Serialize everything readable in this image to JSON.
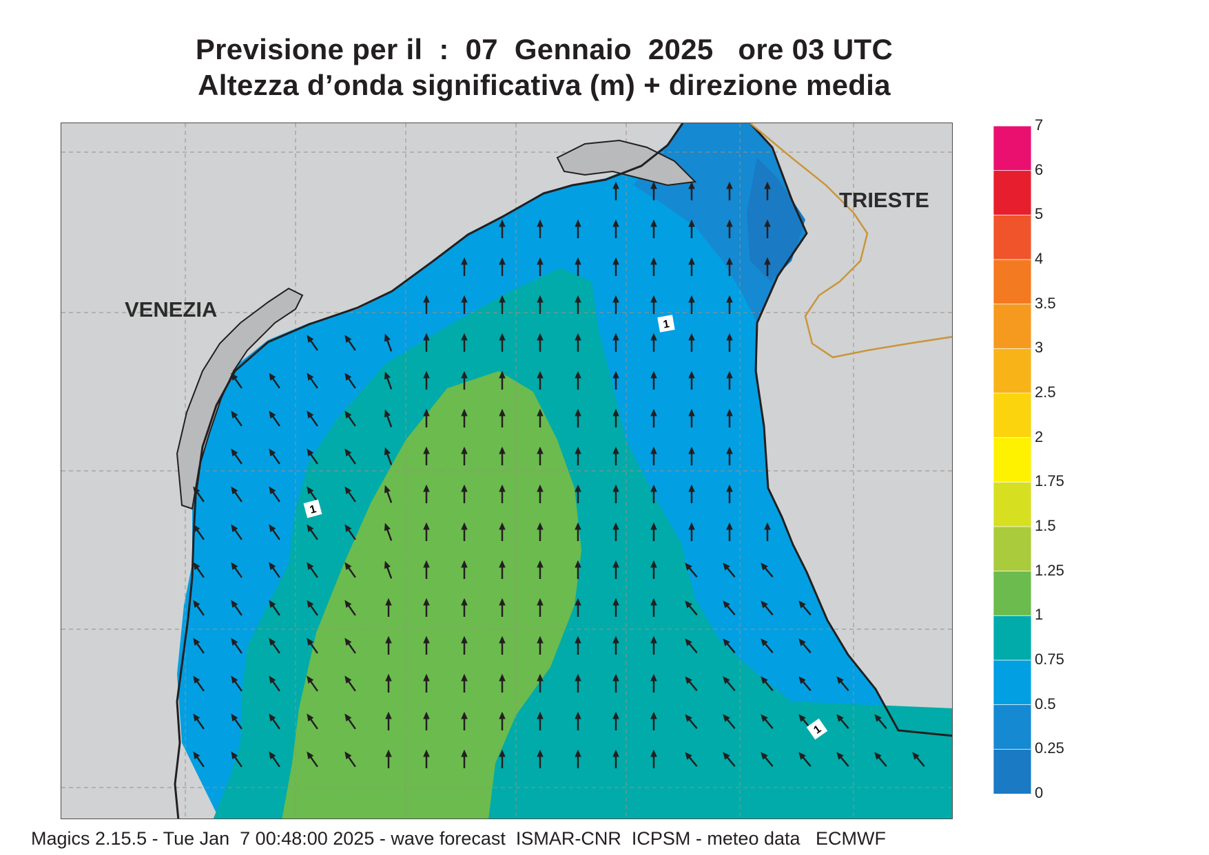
{
  "title": {
    "line1": "Previsione per il  :  07  Gennaio  2025   ore 03 UTC",
    "line2": "Altezza d’onda significativa (m) + direzione media"
  },
  "cities": [
    {
      "id": "venezia",
      "name": "VENEZIA"
    },
    {
      "id": "trieste",
      "name": "TRIESTE"
    }
  ],
  "contour_label": "1",
  "legend": {
    "levels": [
      {
        "label": "7",
        "color": "#e9106f"
      },
      {
        "label": "6",
        "color": "#e61e2e"
      },
      {
        "label": "5",
        "color": "#f0542a"
      },
      {
        "label": "4",
        "color": "#f47a22"
      },
      {
        "label": "3.5",
        "color": "#f59a1f"
      },
      {
        "label": "3",
        "color": "#f8b318"
      },
      {
        "label": "2.5",
        "color": "#fbd40e"
      },
      {
        "label": "2",
        "color": "#fff200"
      },
      {
        "label": "1.75",
        "color": "#d6e021"
      },
      {
        "label": "1.5",
        "color": "#a9cb3c"
      },
      {
        "label": "1.25",
        "color": "#6cbb4e"
      },
      {
        "label": "1",
        "color": "#00aba9"
      },
      {
        "label": "0.75",
        "color": "#039fe3"
      },
      {
        "label": "0.5",
        "color": "#1589d1"
      },
      {
        "label": "0.25",
        "color": "#1a7ac4"
      },
      {
        "label": "0",
        "color": "#0f62ad"
      }
    ]
  },
  "colors": {
    "land": "#d1d2d3",
    "coast": "#231f20",
    "border": "#c9953a",
    "arrow": "#231f20",
    "grid": "#9c8f84"
  },
  "wave_direction": "north",
  "footer": "Magics 2.15.5 - Tue Jan  7 00:48:00 2025 - wave forecast  ISMAR-CNR  ICPSM - meteo data   ECMWF"
}
